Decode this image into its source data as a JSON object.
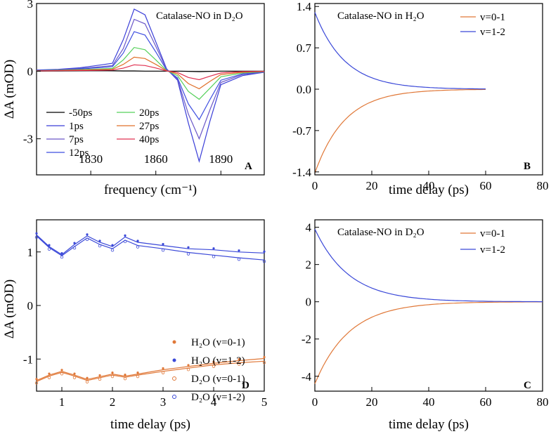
{
  "chart_data": [
    {
      "id": "A",
      "type": "line",
      "panel_label": "A",
      "title": "Catalase-NO in D₂O",
      "xlabel": "frequency (cm⁻¹)",
      "ylabel": "ΔA (mOD)",
      "xlim": [
        1805,
        1910
      ],
      "ylim": [
        -4.6,
        3.0
      ],
      "xticks": [
        1830,
        1860,
        1890
      ],
      "xtick_labels": [
        "1830",
        "1860",
        "1890"
      ],
      "yticks": [
        -3,
        0,
        3
      ],
      "ytick_labels": [
        "-3",
        "0",
        "3"
      ],
      "x": [
        1805,
        1815,
        1825,
        1835,
        1840,
        1845,
        1850,
        1855,
        1860,
        1865,
        1870,
        1875,
        1880,
        1885,
        1890,
        1900,
        1910
      ],
      "series": [
        {
          "name": "-50ps",
          "color": "#000000",
          "values": [
            0.0,
            0.01,
            0.02,
            0.03,
            0.02,
            0.01,
            0.01,
            0.0,
            0.0,
            0.0,
            0.0,
            -0.01,
            -0.02,
            -0.01,
            0.0,
            0.0,
            0.0
          ]
        },
        {
          "name": "1ps",
          "color": "#3b3fd8",
          "values": [
            0.05,
            0.08,
            0.15,
            0.28,
            0.35,
            1.4,
            2.75,
            2.5,
            1.3,
            0.1,
            -0.4,
            -2.3,
            -4.0,
            -2.2,
            -0.6,
            -0.2,
            -0.05
          ]
        },
        {
          "name": "7ps",
          "color": "#6b58c8",
          "values": [
            0.04,
            0.07,
            0.12,
            0.2,
            0.25,
            1.0,
            2.3,
            2.1,
            1.1,
            0.08,
            -0.35,
            -1.9,
            -3.0,
            -1.7,
            -0.5,
            -0.15,
            -0.05
          ]
        },
        {
          "name": "12ps",
          "color": "#3f4fe0",
          "values": [
            0.03,
            0.06,
            0.1,
            0.16,
            0.2,
            0.8,
            1.75,
            1.6,
            0.85,
            0.05,
            -0.3,
            -1.45,
            -2.15,
            -1.25,
            -0.4,
            -0.12,
            -0.04
          ]
        },
        {
          "name": "20ps",
          "color": "#55d05a",
          "values": [
            0.02,
            0.04,
            0.07,
            0.1,
            0.12,
            0.5,
            1.05,
            0.95,
            0.5,
            0.03,
            -0.2,
            -0.9,
            -1.25,
            -0.75,
            -0.25,
            -0.08,
            -0.02
          ]
        },
        {
          "name": "27ps",
          "color": "#e0702a",
          "values": [
            0.01,
            0.03,
            0.05,
            0.07,
            0.08,
            0.3,
            0.62,
            0.56,
            0.3,
            0.02,
            -0.12,
            -0.55,
            -0.78,
            -0.45,
            -0.15,
            -0.05,
            -0.01
          ]
        },
        {
          "name": "40ps",
          "color": "#e03050",
          "values": [
            0.01,
            0.02,
            0.03,
            0.04,
            0.05,
            0.13,
            0.28,
            0.25,
            0.14,
            0.01,
            -0.06,
            -0.28,
            -0.38,
            -0.22,
            -0.08,
            -0.02,
            -0.01
          ]
        }
      ]
    },
    {
      "id": "B",
      "type": "line",
      "panel_label": "B",
      "title": "Catalase-NO in H₂O",
      "xlabel": "time delay (ps)",
      "ylabel": "",
      "xlim": [
        0,
        80
      ],
      "ylim": [
        -1.45,
        1.45
      ],
      "xticks": [
        0,
        20,
        40,
        60,
        80
      ],
      "xtick_labels": [
        "0",
        "20",
        "40",
        "60",
        "80"
      ],
      "yticks": [
        -1.4,
        -0.7,
        0.0,
        0.7,
        1.4
      ],
      "ytick_labels": [
        "-1.4",
        "-0.7",
        "0.0",
        "0.7",
        "1.4"
      ],
      "series": [
        {
          "name": "v=0-1",
          "color": "#e07838",
          "amplitude": -1.42,
          "tau": 10.5,
          "x_end": 60
        },
        {
          "name": "v=1-2",
          "color": "#3a48d8",
          "amplitude": 1.3,
          "tau": 10.5,
          "x_end": 60
        }
      ]
    },
    {
      "id": "D",
      "type": "line",
      "panel_label": "D",
      "title": "",
      "xlabel": "time delay (ps)",
      "ylabel": "ΔA (mOD)",
      "xlim": [
        0.5,
        5
      ],
      "ylim": [
        -1.6,
        1.6
      ],
      "xticks": [
        1,
        2,
        3,
        4,
        5
      ],
      "xtick_labels": [
        "1",
        "2",
        "3",
        "4",
        "5"
      ],
      "yticks": [
        -1,
        0,
        1
      ],
      "ytick_labels": [
        "-1",
        "0",
        "1"
      ],
      "x": [
        0.5,
        0.75,
        1.0,
        1.25,
        1.5,
        1.75,
        2.0,
        2.25,
        2.5,
        3.0,
        3.5,
        4.0,
        4.5,
        5.0
      ],
      "series": [
        {
          "name": "H₂O (v=0-1)",
          "color": "#e07838",
          "marker": "dot",
          "values": [
            -1.4,
            -1.3,
            -1.23,
            -1.3,
            -1.38,
            -1.33,
            -1.28,
            -1.32,
            -1.28,
            -1.2,
            -1.14,
            -1.08,
            -1.03,
            -0.99
          ]
        },
        {
          "name": "H₂O (v=1-2)",
          "color": "#3a48d8",
          "marker": "dot",
          "values": [
            1.32,
            1.1,
            0.95,
            1.14,
            1.3,
            1.18,
            1.1,
            1.28,
            1.18,
            1.12,
            1.06,
            1.04,
            1.0,
            0.98
          ]
        },
        {
          "name": "D₂O (v=0-1)",
          "color": "#e07838",
          "marker": "circle",
          "values": [
            -1.42,
            -1.32,
            -1.25,
            -1.32,
            -1.4,
            -1.35,
            -1.3,
            -1.34,
            -1.3,
            -1.23,
            -1.17,
            -1.11,
            -1.07,
            -1.04
          ]
        },
        {
          "name": "D₂O (v=1-2)",
          "color": "#3a48d8",
          "marker": "circle",
          "values": [
            1.3,
            1.08,
            0.93,
            1.1,
            1.26,
            1.14,
            1.06,
            1.22,
            1.12,
            1.06,
            0.99,
            0.94,
            0.89,
            0.85
          ]
        }
      ]
    },
    {
      "id": "C",
      "type": "line",
      "panel_label": "C",
      "title": "Catalase-NO in D₂O",
      "xlabel": "time delay (ps)",
      "ylabel": "",
      "xlim": [
        0,
        80
      ],
      "ylim": [
        -4.8,
        4.4
      ],
      "xticks": [
        0,
        20,
        40,
        60,
        80
      ],
      "xtick_labels": [
        "0",
        "20",
        "40",
        "60",
        "80"
      ],
      "yticks": [
        -4,
        -2,
        0,
        2,
        4
      ],
      "ytick_labels": [
        "-4",
        "-2",
        "0",
        "2",
        "4"
      ],
      "series": [
        {
          "name": "v=0-1",
          "color": "#e07838",
          "amplitude": -4.4,
          "tau": 12,
          "x_end": 80
        },
        {
          "name": "v=1-2",
          "color": "#3a48d8",
          "amplitude": 3.9,
          "tau": 12,
          "x_end": 80
        }
      ]
    }
  ]
}
